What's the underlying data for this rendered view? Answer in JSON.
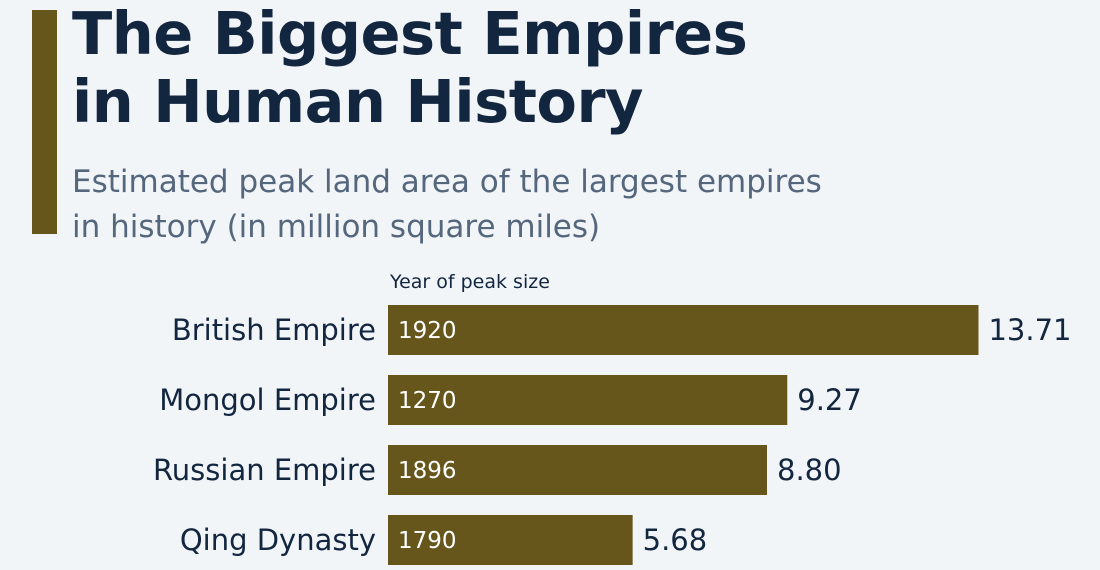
{
  "header": {
    "title_lines": [
      "The Biggest Empires",
      "in Human History"
    ],
    "subtitle_lines": [
      "Estimated peak land area of the largest empires",
      "in history (in million square miles)"
    ],
    "column_header": "Year of peak size"
  },
  "colors": {
    "bar": "#66561b",
    "accent": "#66561b",
    "title": "#13263f",
    "subtitle": "#55677d",
    "background": "#f2f5f8"
  },
  "chart_data": {
    "type": "bar",
    "orientation": "horizontal",
    "title": "The Biggest Empires in Human History",
    "subtitle": "Estimated peak land area of the largest empires in history (in million square miles)",
    "categories": [
      "British Empire",
      "Mongol Empire",
      "Russian Empire",
      "Qing Dynasty"
    ],
    "values": [
      13.71,
      9.27,
      8.8,
      5.68
    ],
    "value_labels": [
      "13.71",
      "9.27",
      "8.80",
      "5.68"
    ],
    "years": [
      "1920",
      "1270",
      "1896",
      "1790"
    ],
    "bar_annotation_header": "Year of peak size",
    "grid": false,
    "legend": "none"
  }
}
